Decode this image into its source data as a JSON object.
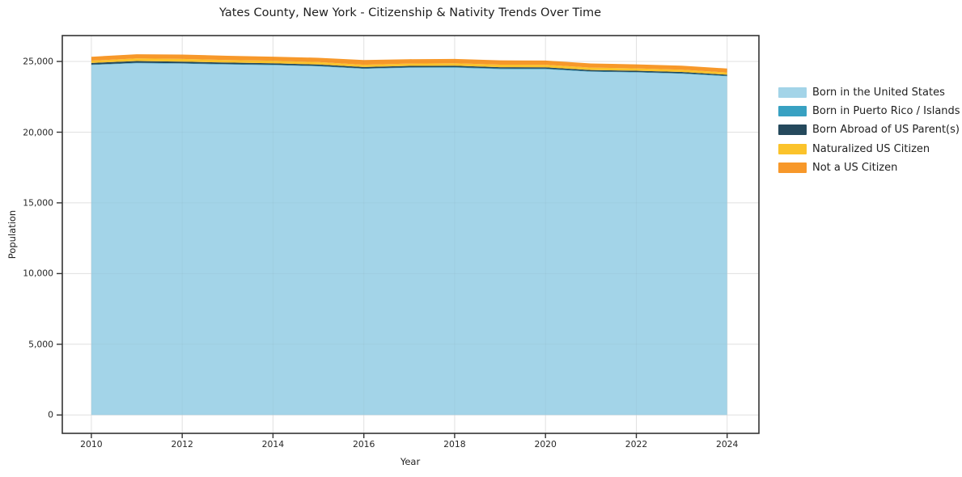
{
  "chart_data": {
    "type": "area",
    "stacked": true,
    "title": "Yates County, New York - Citizenship & Nativity Trends Over Time",
    "xlabel": "Year",
    "ylabel": "Population",
    "x": [
      2010,
      2011,
      2012,
      2013,
      2014,
      2015,
      2016,
      2017,
      2018,
      2019,
      2020,
      2021,
      2022,
      2023,
      2024
    ],
    "series": [
      {
        "name": "Born in the United States",
        "color": "#a3d4e8",
        "values": [
          24750,
          24870,
          24840,
          24780,
          24740,
          24650,
          24480,
          24550,
          24560,
          24460,
          24450,
          24270,
          24220,
          24130,
          23950
        ]
      },
      {
        "name": "Born in Puerto Rico / Islands",
        "color": "#38a1c2",
        "values": [
          30,
          40,
          35,
          30,
          30,
          35,
          30,
          35,
          40,
          35,
          40,
          35,
          30,
          35,
          30
        ]
      },
      {
        "name": "Born Abroad of US Parent(s)",
        "color": "#25495c",
        "values": [
          110,
          120,
          115,
          110,
          105,
          100,
          95,
          100,
          105,
          100,
          95,
          90,
          95,
          90,
          85
        ]
      },
      {
        "name": "Naturalized US Citizen",
        "color": "#fbc32b",
        "values": [
          170,
          180,
          185,
          180,
          175,
          170,
          160,
          165,
          170,
          175,
          180,
          170,
          165,
          160,
          155
        ]
      },
      {
        "name": "Not a US Citizen",
        "color": "#f7982a",
        "values": [
          270,
          300,
          310,
          300,
          290,
          300,
          330,
          310,
          300,
          310,
          300,
          290,
          285,
          290,
          280
        ]
      }
    ],
    "xticks": [
      2010,
      2012,
      2014,
      2016,
      2018,
      2020,
      2022,
      2024
    ],
    "xtick_labels": [
      "2010",
      "2012",
      "2014",
      "2016",
      "2018",
      "2020",
      "2022",
      "2024"
    ],
    "yticks": [
      0,
      5000,
      10000,
      15000,
      20000,
      25000
    ],
    "ytick_labels": [
      "0",
      "5,000",
      "10,000",
      "15,000",
      "20,000",
      "25,000"
    ],
    "xlim": [
      2009.36,
      2024.7
    ],
    "ylim": [
      -1300,
      26830
    ],
    "grid": true,
    "legend_position": "right",
    "colors": {
      "grid": "#e8e8e8",
      "grid_overlay": "rgba(100,100,100,0.05)",
      "spine": "#333333",
      "tick": "#333333",
      "text": "#1f1f1f",
      "background": "#ffffff"
    }
  }
}
